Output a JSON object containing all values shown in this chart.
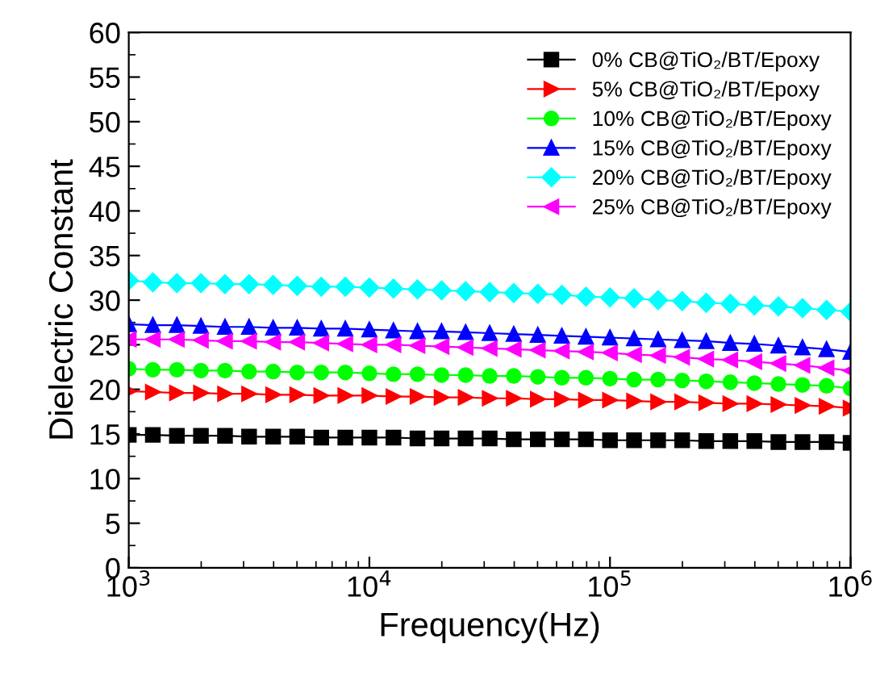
{
  "chart_data": {
    "type": "line",
    "xlabel": "Frequency(Hz)",
    "ylabel": "Dielectric Constant",
    "log": "x",
    "x": [
      1000,
      1259,
      1585,
      1995,
      2512,
      3162,
      3981,
      5012,
      6310,
      7943,
      10000,
      12589,
      15849,
      19953,
      25119,
      31623,
      39811,
      50119,
      63096,
      79433,
      100000,
      125893,
      158489,
      199526,
      251189,
      316228,
      398107,
      501187,
      630957,
      794328,
      1000000
    ],
    "xlim": [
      1000,
      1000000
    ],
    "xticks": [
      {
        "value": 1000,
        "label": "10$^{3}$"
      },
      {
        "value": 10000,
        "label": "10$^{4}$"
      },
      {
        "value": 100000,
        "label": "10$^{5}$"
      },
      {
        "value": 1000000,
        "label": "10$^{6}$"
      }
    ],
    "ylim": [
      0,
      60
    ],
    "yticks": [
      0,
      5,
      10,
      15,
      20,
      25,
      30,
      35,
      40,
      45,
      50,
      55,
      60
    ],
    "grid": false,
    "legend": "top right",
    "line_style": "solid",
    "series": [
      {
        "name": "0% CB@TiO₂/BT/Epoxy",
        "color": "#000000",
        "marker": "square",
        "values": [
          14.9,
          14.9,
          14.8,
          14.8,
          14.8,
          14.7,
          14.7,
          14.7,
          14.6,
          14.6,
          14.6,
          14.6,
          14.5,
          14.5,
          14.5,
          14.5,
          14.4,
          14.4,
          14.4,
          14.4,
          14.3,
          14.3,
          14.3,
          14.3,
          14.2,
          14.2,
          14.2,
          14.1,
          14.1,
          14.1,
          14.0
        ]
      },
      {
        "name": "5% CB@TiO₂/BT/Epoxy",
        "color": "#ff0000",
        "marker": "triangle_right",
        "values": [
          19.8,
          19.7,
          19.6,
          19.6,
          19.5,
          19.5,
          19.4,
          19.4,
          19.3,
          19.3,
          19.3,
          19.2,
          19.2,
          19.1,
          19.1,
          19.0,
          19.0,
          18.9,
          18.9,
          18.8,
          18.8,
          18.7,
          18.6,
          18.6,
          18.5,
          18.4,
          18.4,
          18.3,
          18.2,
          18.1,
          17.9
        ]
      },
      {
        "name": "10% CB@TiO₂/BT/Epoxy",
        "color": "#00ff00",
        "marker": "circle",
        "values": [
          22.3,
          22.2,
          22.2,
          22.1,
          22.1,
          22.0,
          22.0,
          21.9,
          21.9,
          21.9,
          21.8,
          21.7,
          21.7,
          21.6,
          21.6,
          21.5,
          21.5,
          21.4,
          21.3,
          21.3,
          21.2,
          21.1,
          21.1,
          21.0,
          20.9,
          20.8,
          20.7,
          20.6,
          20.5,
          20.4,
          20.1
        ]
      },
      {
        "name": "15% CB@TiO₂/BT/Epoxy",
        "color": "#0000ff",
        "marker": "triangle",
        "values": [
          27.3,
          27.2,
          27.2,
          27.1,
          27.0,
          27.0,
          26.9,
          26.9,
          26.8,
          26.8,
          26.7,
          26.6,
          26.5,
          26.5,
          26.4,
          26.3,
          26.2,
          26.1,
          26.0,
          25.9,
          25.8,
          25.7,
          25.6,
          25.5,
          25.4,
          25.2,
          25.1,
          24.9,
          24.7,
          24.5,
          24.2
        ]
      },
      {
        "name": "20% CB@TiO₂/BT/Epoxy",
        "color": "#00ffff",
        "marker": "diamond",
        "values": [
          32.2,
          32.0,
          31.9,
          31.9,
          31.8,
          31.8,
          31.7,
          31.6,
          31.5,
          31.5,
          31.4,
          31.3,
          31.2,
          31.1,
          31.0,
          30.9,
          30.8,
          30.7,
          30.6,
          30.4,
          30.3,
          30.2,
          30.0,
          29.9,
          29.7,
          29.6,
          29.4,
          29.3,
          29.1,
          28.9,
          28.7
        ]
      },
      {
        "name": "25% CB@TiO₂/BT/Epoxy",
        "color": "#ff00ff",
        "marker": "triangle_left",
        "values": [
          25.6,
          25.6,
          25.6,
          25.5,
          25.4,
          25.4,
          25.3,
          25.3,
          25.2,
          25.1,
          25.0,
          25.0,
          24.9,
          24.8,
          24.7,
          24.6,
          24.5,
          24.4,
          24.3,
          24.2,
          24.1,
          23.9,
          23.8,
          23.6,
          23.4,
          23.3,
          23.1,
          22.9,
          22.7,
          22.4,
          22.1
        ]
      }
    ]
  }
}
